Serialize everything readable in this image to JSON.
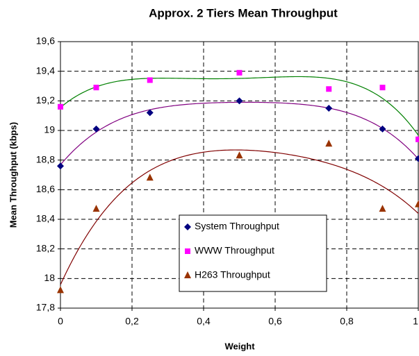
{
  "chart_data": {
    "type": "scatter",
    "title": "Approx. 2 Tiers Mean Throughput",
    "x_label": "Weight",
    "y_label": "Mean Throughput (kbps)",
    "xlim": [
      0,
      1
    ],
    "ylim": [
      17.8,
      19.6
    ],
    "xticks": [
      0,
      {
        "value": 0.2,
        "label": "0,2"
      },
      {
        "value": 0.4,
        "label": "0,4"
      },
      {
        "value": 0.6,
        "label": "0,6"
      },
      {
        "value": 0.8,
        "label": "0,8"
      },
      1
    ],
    "yticks": [
      {
        "value": 17.8,
        "label": "17,8"
      },
      18,
      {
        "value": 18.2,
        "label": "18,2"
      },
      {
        "value": 18.4,
        "label": "18,4"
      },
      {
        "value": 18.6,
        "label": "18,6"
      },
      {
        "value": 18.8,
        "label": "18,8"
      },
      19,
      {
        "value": 19.2,
        "label": "19,2"
      },
      {
        "value": 19.4,
        "label": "19,4"
      },
      {
        "value": 19.6,
        "label": "19,6"
      }
    ],
    "grid": true,
    "trendlines": true,
    "x": [
      0,
      0.1,
      0.25,
      0.5,
      0.75,
      0.9,
      1
    ],
    "series": [
      {
        "name": "System Throughput",
        "color": "#000080",
        "marker": "diamond",
        "line_color": "#800080",
        "values": [
          18.76,
          19.01,
          19.12,
          19.2,
          19.15,
          19.01,
          18.81
        ]
      },
      {
        "name": "WWW Throughput",
        "color": "#ff00ff",
        "marker": "square",
        "line_color": "#008000",
        "values": [
          19.16,
          19.29,
          19.34,
          19.39,
          19.28,
          19.29,
          18.94
        ]
      },
      {
        "name": "H263 Throughput",
        "color": "#993300",
        "marker": "triangle",
        "line_color": "#800000",
        "values": [
          17.92,
          18.47,
          18.68,
          18.83,
          18.91,
          18.47,
          18.5
        ]
      }
    ]
  }
}
